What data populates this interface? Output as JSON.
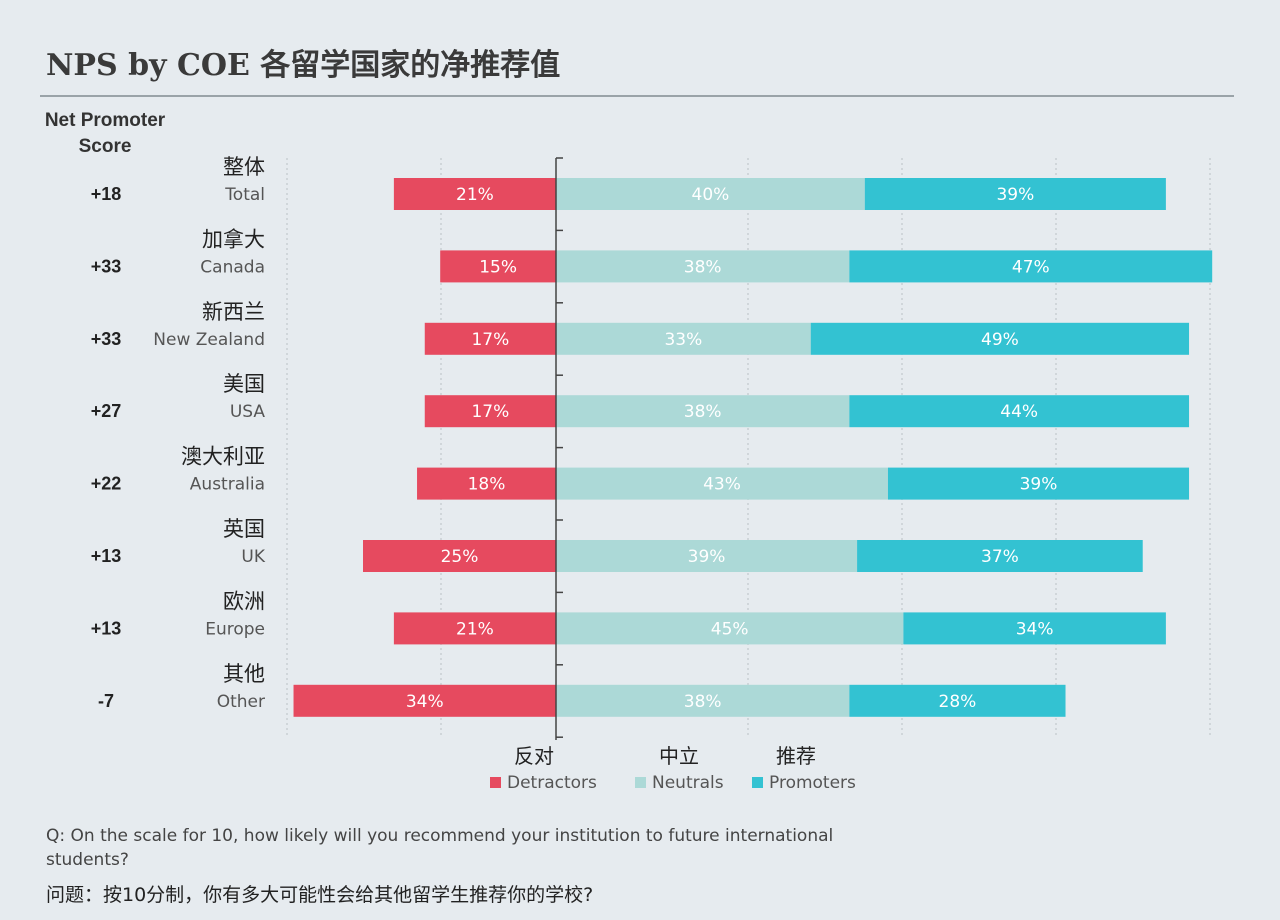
{
  "title": "NPS by COE  各留学国家的净推荐值",
  "nps_header": "Net Promoter Score",
  "colors": {
    "detractors": "#e64a5f",
    "neutrals": "#acd9d7",
    "promoters": "#33c2d2",
    "background": "#e6ebef"
  },
  "legend": [
    {
      "cn": "反对",
      "en": "Detractors",
      "color": "#e64a5f"
    },
    {
      "cn": "中立",
      "en": "Neutrals",
      "color": "#acd9d7"
    },
    {
      "cn": "推荐",
      "en": "Promoters",
      "color": "#33c2d2"
    }
  ],
  "question": "Q: On the scale for 10, how likely will you recommend your institution to future international students?",
  "question_cn": "问题：按10分制，你有多大可能性会给其他留学生推荐你的学校?",
  "chart_data": {
    "type": "bar",
    "orientation": "horizontal-diverging-stacked",
    "categories_cn": [
      "整体",
      "加拿大",
      "新西兰",
      "美国",
      "澳大利亚",
      "英国",
      "欧洲",
      "其他"
    ],
    "categories": [
      "Total",
      "Canada",
      "New Zealand",
      "USA",
      "Australia",
      "UK",
      "Europe",
      "Other"
    ],
    "nps": [
      "+18",
      "+33",
      "+33",
      "+27",
      "+22",
      "+13",
      "+13",
      "-7"
    ],
    "series": [
      {
        "name": "Detractors",
        "values": [
          21,
          15,
          17,
          17,
          18,
          25,
          21,
          34
        ]
      },
      {
        "name": "Neutrals",
        "values": [
          40,
          38,
          33,
          38,
          43,
          39,
          45,
          38
        ]
      },
      {
        "name": "Promoters",
        "values": [
          39,
          47,
          49,
          44,
          39,
          37,
          34,
          28
        ]
      }
    ],
    "value_suffix": "%",
    "grid": true
  }
}
